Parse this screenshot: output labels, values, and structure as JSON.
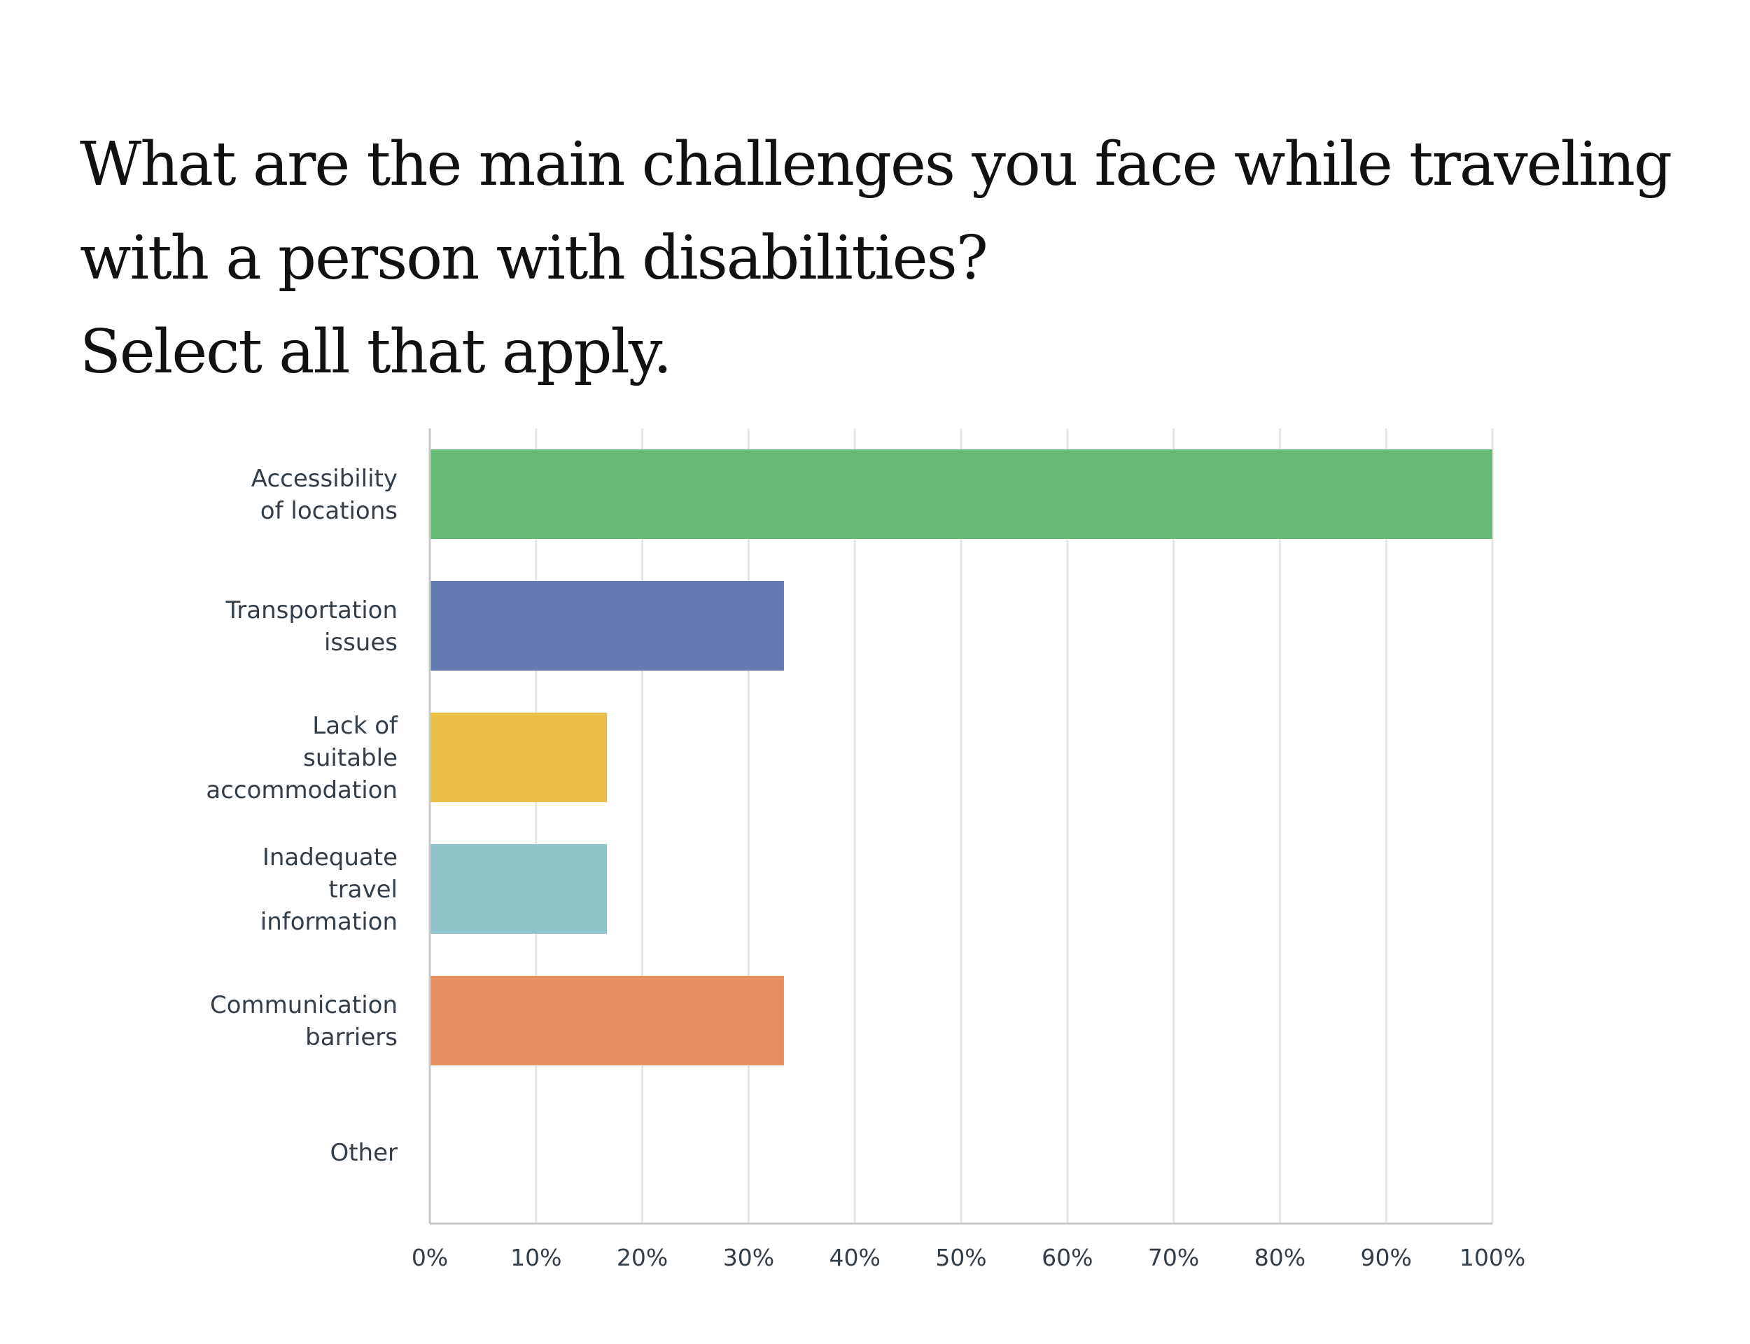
{
  "title_lines": [
    "What are the main challenges you face while traveling",
    "with a person with disabilities?",
    "Select all that apply."
  ],
  "colors": {
    "accessibility": "#66bc77",
    "transportation": "#647bb1",
    "accommodation": "#e9c045",
    "information": "#8fc5ca",
    "communication": "#e69060",
    "other": "#b8b8b8",
    "grid": "#e6e6e6",
    "axis": "#c8c8c8",
    "text": "#333e48"
  },
  "chart_data": {
    "type": "bar",
    "orientation": "horizontal",
    "title": "What are the main challenges you face while traveling with a person with disabilities? Select all that apply.",
    "categories": [
      [
        "Accessibility",
        "of locations"
      ],
      [
        "Transportation",
        "issues"
      ],
      [
        "Lack of",
        "suitable",
        "accommodation"
      ],
      [
        "Inadequate",
        "travel",
        "information"
      ],
      [
        "Communication",
        "barriers"
      ],
      [
        "Other"
      ]
    ],
    "values": [
      100,
      33.33,
      16.67,
      16.67,
      33.33,
      0
    ],
    "bar_colors": [
      "#66bc77",
      "#647bb1",
      "#e9c045",
      "#8fc5ca",
      "#e69060",
      "#b8b8b8"
    ],
    "xlim": [
      0,
      100
    ],
    "xticks": [
      "0%",
      "10%",
      "20%",
      "30%",
      "40%",
      "50%",
      "60%",
      "70%",
      "80%",
      "90%",
      "100%"
    ],
    "xlabel": "",
    "ylabel": "",
    "grid": true,
    "legend": "none"
  }
}
